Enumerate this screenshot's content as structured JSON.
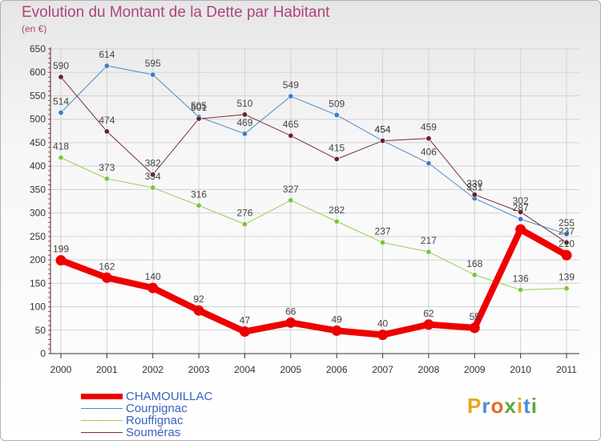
{
  "header": {
    "title": "Evolution du Montant de la Dette par Habitant",
    "unit": "(en €)"
  },
  "logo": {
    "text": "Proxiti",
    "letter_colors": [
      "#e8a51a",
      "#4a8fd6",
      "#e56a2a",
      "#5ba83a",
      "#e8a51a",
      "#4a8fd6",
      "#5ba83a"
    ]
  },
  "colors": {
    "background_top": "#e6e6e6",
    "grid": "#d2d2d2",
    "axis": "#333333",
    "title": "#b0437a",
    "legend_text": "#3a63c0",
    "minor_tick": "#cc3333"
  },
  "chart_data": {
    "type": "line",
    "title": "Evolution du Montant de la Dette par Habitant",
    "ylabel": "(en €)",
    "xlabel": "",
    "x": [
      "2000",
      "2001",
      "2002",
      "2003",
      "2004",
      "2005",
      "2006",
      "2007",
      "2008",
      "2009",
      "2010",
      "2011"
    ],
    "ylim": [
      0,
      650
    ],
    "yticks": [
      0,
      50,
      100,
      150,
      200,
      250,
      300,
      350,
      400,
      450,
      500,
      550,
      600,
      650
    ],
    "grid": true,
    "legend_position": "bottom-left",
    "series": [
      {
        "name": "Courpignac",
        "color": "#4d8ac9",
        "marker": "#3a7fc4",
        "width": 1,
        "values": [
          514,
          614,
          595,
          505,
          469,
          549,
          509,
          454,
          406,
          331,
          287,
          255
        ],
        "labels": [
          "514",
          "614",
          "595",
          "505",
          "469",
          "549",
          "509",
          "454",
          "406",
          "331",
          "287",
          "255"
        ]
      },
      {
        "name": "Rouffignac",
        "color": "#92d050",
        "marker": "#7cc43c",
        "width": 1,
        "values": [
          418,
          373,
          354,
          316,
          276,
          327,
          282,
          237,
          217,
          168,
          136,
          139
        ],
        "labels": [
          "418",
          "373",
          "354",
          "316",
          "276",
          "327",
          "282",
          "237",
          "217",
          "168",
          "136",
          "139"
        ]
      },
      {
        "name": "Souméras",
        "color": "#7b2c3a",
        "marker": "#6b1e2a",
        "width": 1,
        "values": [
          590,
          474,
          382,
          501,
          510,
          465,
          415,
          454,
          459,
          339,
          302,
          237
        ],
        "labels": [
          "590",
          "474",
          "382",
          "501",
          "510",
          "465",
          "415",
          "454",
          "459",
          "339",
          "302",
          "237"
        ]
      },
      {
        "name": "CHAMOUILLAC",
        "color": "#ee0000",
        "marker": "#ee0000",
        "width": 8,
        "values": [
          199,
          162,
          140,
          92,
          47,
          66,
          49,
          40,
          62,
          55,
          265,
          210
        ],
        "labels": [
          "199",
          "162",
          "140",
          "92",
          "47",
          "66",
          "49",
          "40",
          "62",
          "55",
          "",
          "210"
        ]
      }
    ],
    "legend": [
      {
        "name": "CHAMOUILLAC",
        "color": "#ee0000",
        "weight": 7
      },
      {
        "name": "Courpignac",
        "color": "#4d8ac9",
        "weight": 1
      },
      {
        "name": "Rouffignac",
        "color": "#92d050",
        "weight": 1
      },
      {
        "name": "Souméras",
        "color": "#7b2c3a",
        "weight": 1
      }
    ]
  }
}
